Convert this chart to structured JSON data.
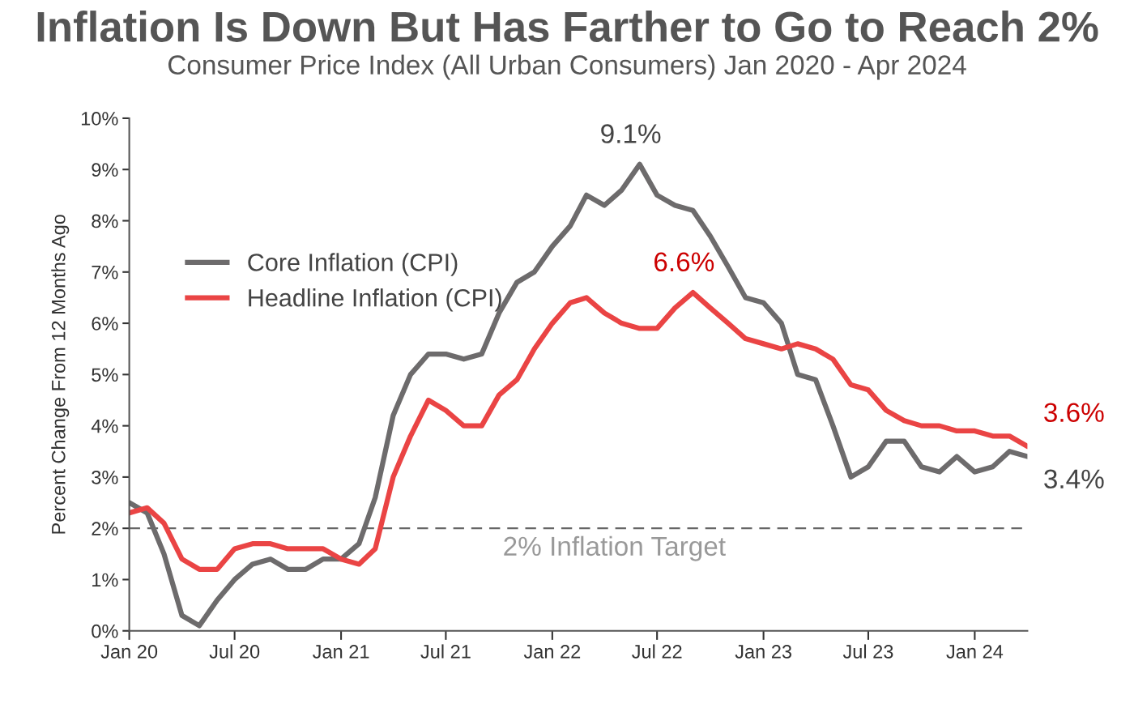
{
  "chart_data": {
    "type": "line",
    "title": "Inflation Is Down But Has Farther to Go to Reach 2%",
    "subtitle": "Consumer Price Index (All Urban Consumers) Jan 2020 - Apr 2024",
    "ylabel": "Percent Change From 12 Months Ago",
    "x": [
      "2020-01",
      "2020-02",
      "2020-03",
      "2020-04",
      "2020-05",
      "2020-06",
      "2020-07",
      "2020-08",
      "2020-09",
      "2020-10",
      "2020-11",
      "2020-12",
      "2021-01",
      "2021-02",
      "2021-03",
      "2021-04",
      "2021-05",
      "2021-06",
      "2021-07",
      "2021-08",
      "2021-09",
      "2021-10",
      "2021-11",
      "2021-12",
      "2022-01",
      "2022-02",
      "2022-03",
      "2022-04",
      "2022-05",
      "2022-06",
      "2022-07",
      "2022-08",
      "2022-09",
      "2022-10",
      "2022-11",
      "2022-12",
      "2023-01",
      "2023-02",
      "2023-03",
      "2023-04",
      "2023-05",
      "2023-06",
      "2023-07",
      "2023-08",
      "2023-09",
      "2023-10",
      "2023-11",
      "2023-12",
      "2024-01",
      "2024-02",
      "2024-03",
      "2024-04"
    ],
    "series": [
      {
        "name": "Core Inflation (CPI)",
        "color": "#6d6b6c",
        "values": [
          2.5,
          2.3,
          1.5,
          0.3,
          0.1,
          0.6,
          1.0,
          1.3,
          1.4,
          1.2,
          1.2,
          1.4,
          1.4,
          1.7,
          2.6,
          4.2,
          5.0,
          5.4,
          5.4,
          5.3,
          5.4,
          6.2,
          6.8,
          7.0,
          7.5,
          7.9,
          8.5,
          8.3,
          8.6,
          9.1,
          8.5,
          8.3,
          8.2,
          7.7,
          7.1,
          6.5,
          6.4,
          6.0,
          5.0,
          4.9,
          4.0,
          3.0,
          3.2,
          3.7,
          3.7,
          3.2,
          3.1,
          3.4,
          3.1,
          3.2,
          3.5,
          3.4
        ]
      },
      {
        "name": "Headline Inflation (CPI)",
        "color": "#ea4444",
        "values": [
          2.3,
          2.4,
          2.1,
          1.4,
          1.2,
          1.2,
          1.6,
          1.7,
          1.7,
          1.6,
          1.6,
          1.6,
          1.4,
          1.3,
          1.6,
          3.0,
          3.8,
          4.5,
          4.3,
          4.0,
          4.0,
          4.6,
          4.9,
          5.5,
          6.0,
          6.4,
          6.5,
          6.2,
          6.0,
          5.9,
          5.9,
          6.3,
          6.6,
          6.3,
          6.0,
          5.7,
          5.6,
          5.5,
          5.6,
          5.5,
          5.3,
          4.8,
          4.7,
          4.3,
          4.1,
          4.0,
          4.0,
          3.9,
          3.9,
          3.8,
          3.8,
          3.6
        ]
      }
    ],
    "xlim": [
      "2020-01",
      "2024-04"
    ],
    "xticks": [
      {
        "value": "2020-01",
        "label": "Jan 20"
      },
      {
        "value": "2020-07",
        "label": "Jul 20"
      },
      {
        "value": "2021-01",
        "label": "Jan 21"
      },
      {
        "value": "2021-07",
        "label": "Jul 21"
      },
      {
        "value": "2022-01",
        "label": "Jan 22"
      },
      {
        "value": "2022-07",
        "label": "Jul 22"
      },
      {
        "value": "2023-01",
        "label": "Jan 23"
      },
      {
        "value": "2023-07",
        "label": "Jul 23"
      },
      {
        "value": "2024-01",
        "label": "Jan 24"
      }
    ],
    "ylim": [
      0,
      10
    ],
    "yticks": [
      {
        "value": 0,
        "label": "0%"
      },
      {
        "value": 1,
        "label": "1%"
      },
      {
        "value": 2,
        "label": "2%"
      },
      {
        "value": 3,
        "label": "3%"
      },
      {
        "value": 4,
        "label": "4%"
      },
      {
        "value": 5,
        "label": "5%"
      },
      {
        "value": 6,
        "label": "6%"
      },
      {
        "value": 7,
        "label": "7%"
      },
      {
        "value": 8,
        "label": "8%"
      },
      {
        "value": 9,
        "label": "9%"
      },
      {
        "value": 10,
        "label": "10%"
      }
    ],
    "ref_lines": [
      {
        "axis": "y",
        "value": 2,
        "label": "2% Inflation Target",
        "color": "#666666",
        "line_style": "dashed"
      }
    ],
    "annotations": [
      {
        "text": "9.1%",
        "x": "2022-06",
        "y": 9.1
      },
      {
        "text": "6.6%",
        "x": "2022-09",
        "y": 6.6
      },
      {
        "text": "3.6%",
        "x": "2024-04",
        "y": 3.6
      },
      {
        "text": "3.4%",
        "x": "2024-04",
        "y": 3.4
      }
    ],
    "legend": "left",
    "grid": false,
    "marker": "none",
    "line_style": "solid"
  }
}
